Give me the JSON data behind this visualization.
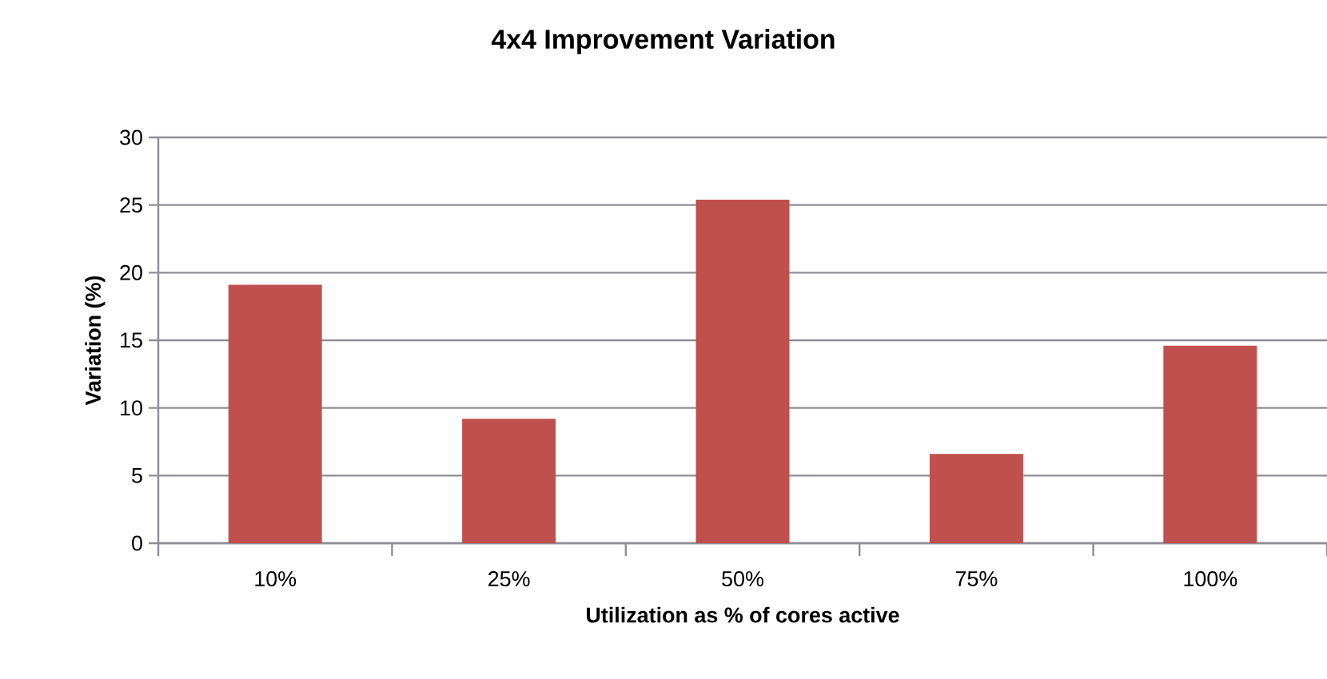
{
  "chart_data": {
    "type": "bar",
    "title": "4x4 Improvement Variation",
    "xlabel": "Utilization as % of cores active",
    "ylabel": "Variation (%)",
    "categories": [
      "10%",
      "25%",
      "50%",
      "75%",
      "100%"
    ],
    "values": [
      19.1,
      9.2,
      25.4,
      6.6,
      14.6
    ],
    "color": "#c0504d",
    "ylim": [
      0,
      30
    ],
    "yticks": [
      0,
      5,
      10,
      15,
      20,
      25,
      30
    ],
    "grid": "y"
  }
}
